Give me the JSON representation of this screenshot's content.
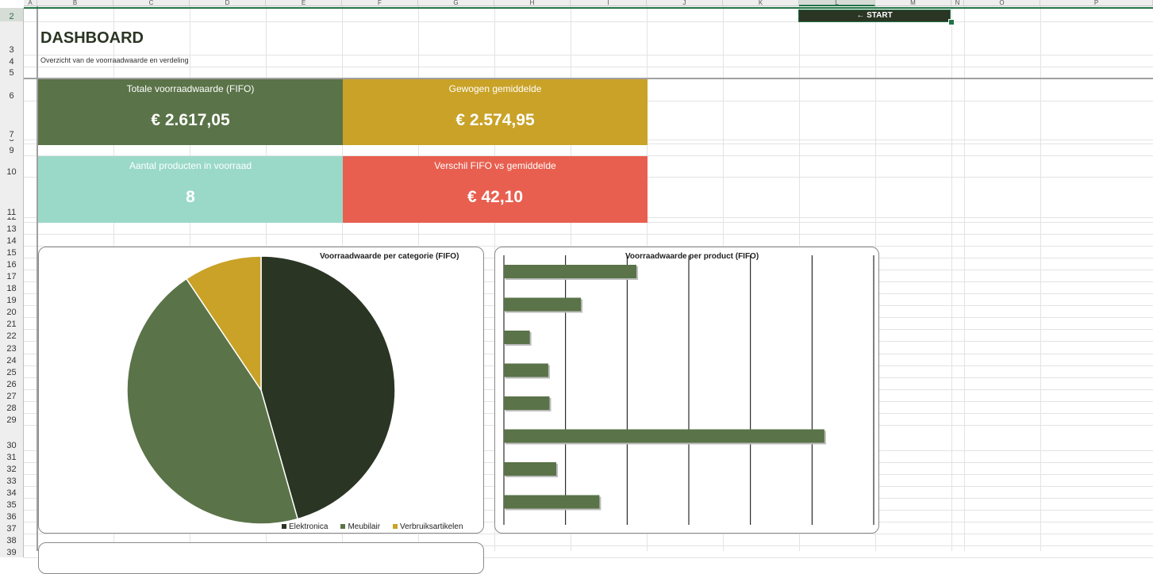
{
  "sheet": {
    "columns": [
      "A",
      "B",
      "C",
      "D",
      "E",
      "F",
      "G",
      "H",
      "I",
      "J",
      "K",
      "L",
      "M",
      "N",
      "O",
      "P"
    ],
    "rows": [
      "2",
      "3",
      "4",
      "5",
      "6",
      "7",
      "8",
      "9",
      "10",
      "11",
      "12",
      "13",
      "14",
      "15",
      "16",
      "17",
      "18",
      "19",
      "20",
      "21",
      "22",
      "23",
      "24",
      "25",
      "26",
      "27",
      "28",
      "29",
      "30",
      "31",
      "32",
      "33",
      "34",
      "35",
      "36",
      "37",
      "38",
      "39"
    ],
    "selected_row": "2",
    "selected_column": "L"
  },
  "start_button": {
    "label": "← START"
  },
  "dashboard": {
    "title": "DASHBOARD",
    "subtitle": "Overzicht van de voorraadwaarde en verdeling"
  },
  "kpis": [
    {
      "label": "Totale voorraadwaarde (FIFO)",
      "value": "€ 2.617,05",
      "color": "#5a7348"
    },
    {
      "label": "Gewogen gemiddelde",
      "value": "€ 2.574,95",
      "color": "#c9a227"
    },
    {
      "label": "Aantal producten in voorraad",
      "value": "8",
      "color": "#9ad9c8"
    },
    {
      "label": "Verschil FIFO vs gemiddelde",
      "value": "€ 42,10",
      "color": "#e85f4f"
    }
  ],
  "colors": {
    "excel_green": "#217346",
    "dark": "#2b3524",
    "medium": "#5a7348",
    "gold": "#c9a227"
  },
  "chart_data": [
    {
      "type": "pie",
      "title": "Voorraadwaarde per categorie (FIFO)",
      "categories": [
        "Elektronica",
        "Meubilair",
        "Verbruiksartikelen"
      ],
      "values": [
        45.6,
        45.0,
        9.4
      ],
      "colors": [
        "#2b3524",
        "#5a7348",
        "#c9a227"
      ],
      "legend": "bottom-right"
    },
    {
      "type": "bar",
      "orientation": "horizontal",
      "title": "Voorraadwaarde per product (FIFO)",
      "values": [
        215,
        125,
        42,
        72,
        74,
        520,
        85,
        155
      ],
      "xlim": [
        0,
        600
      ],
      "grid": true,
      "color": "#5a7348"
    }
  ]
}
